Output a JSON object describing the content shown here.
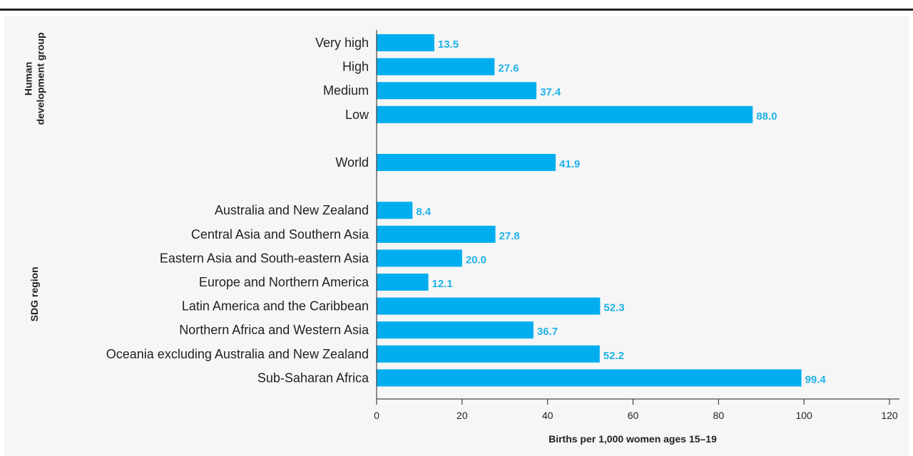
{
  "chart_data": {
    "type": "bar",
    "orientation": "horizontal",
    "groups": [
      {
        "title_lines": [
          "Human",
          "development group"
        ],
        "items": [
          {
            "label": "Very high",
            "value": 13.5,
            "value_label": "13.5"
          },
          {
            "label": "High",
            "value": 27.6,
            "value_label": "27.6"
          },
          {
            "label": "Medium",
            "value": 37.4,
            "value_label": "37.4"
          },
          {
            "label": "Low",
            "value": 88.0,
            "value_label": "88.0"
          }
        ]
      },
      {
        "title_lines": [],
        "items": [
          {
            "label": "World",
            "value": 41.9,
            "value_label": "41.9"
          }
        ]
      },
      {
        "title_lines": [
          "SDG region"
        ],
        "items": [
          {
            "label": "Australia and New Zealand",
            "value": 8.4,
            "value_label": "8.4"
          },
          {
            "label": "Central Asia and Southern Asia",
            "value": 27.8,
            "value_label": "27.8"
          },
          {
            "label": "Eastern Asia and South-eastern Asia",
            "value": 20.0,
            "value_label": "20.0"
          },
          {
            "label": "Europe and Northern America",
            "value": 12.1,
            "value_label": "12.1"
          },
          {
            "label": "Latin America and the Caribbean",
            "value": 52.3,
            "value_label": "52.3"
          },
          {
            "label": "Northern Africa and Western Asia",
            "value": 36.7,
            "value_label": "36.7"
          },
          {
            "label": "Oceania excluding Australia and New Zealand",
            "value": 52.2,
            "value_label": "52.2"
          },
          {
            "label": "Sub-Saharan Africa",
            "value": 99.4,
            "value_label": "99.4"
          }
        ]
      }
    ],
    "xlabel": "Births per 1,000 women ages 15–19",
    "xlim": [
      0,
      120
    ],
    "xticks": [
      0,
      20,
      40,
      60,
      80,
      100,
      120
    ],
    "grid": false,
    "legend": "none",
    "bar_color": "#00aeef",
    "value_label_color": "#1fb2e8",
    "axis_color": "#231f20"
  }
}
